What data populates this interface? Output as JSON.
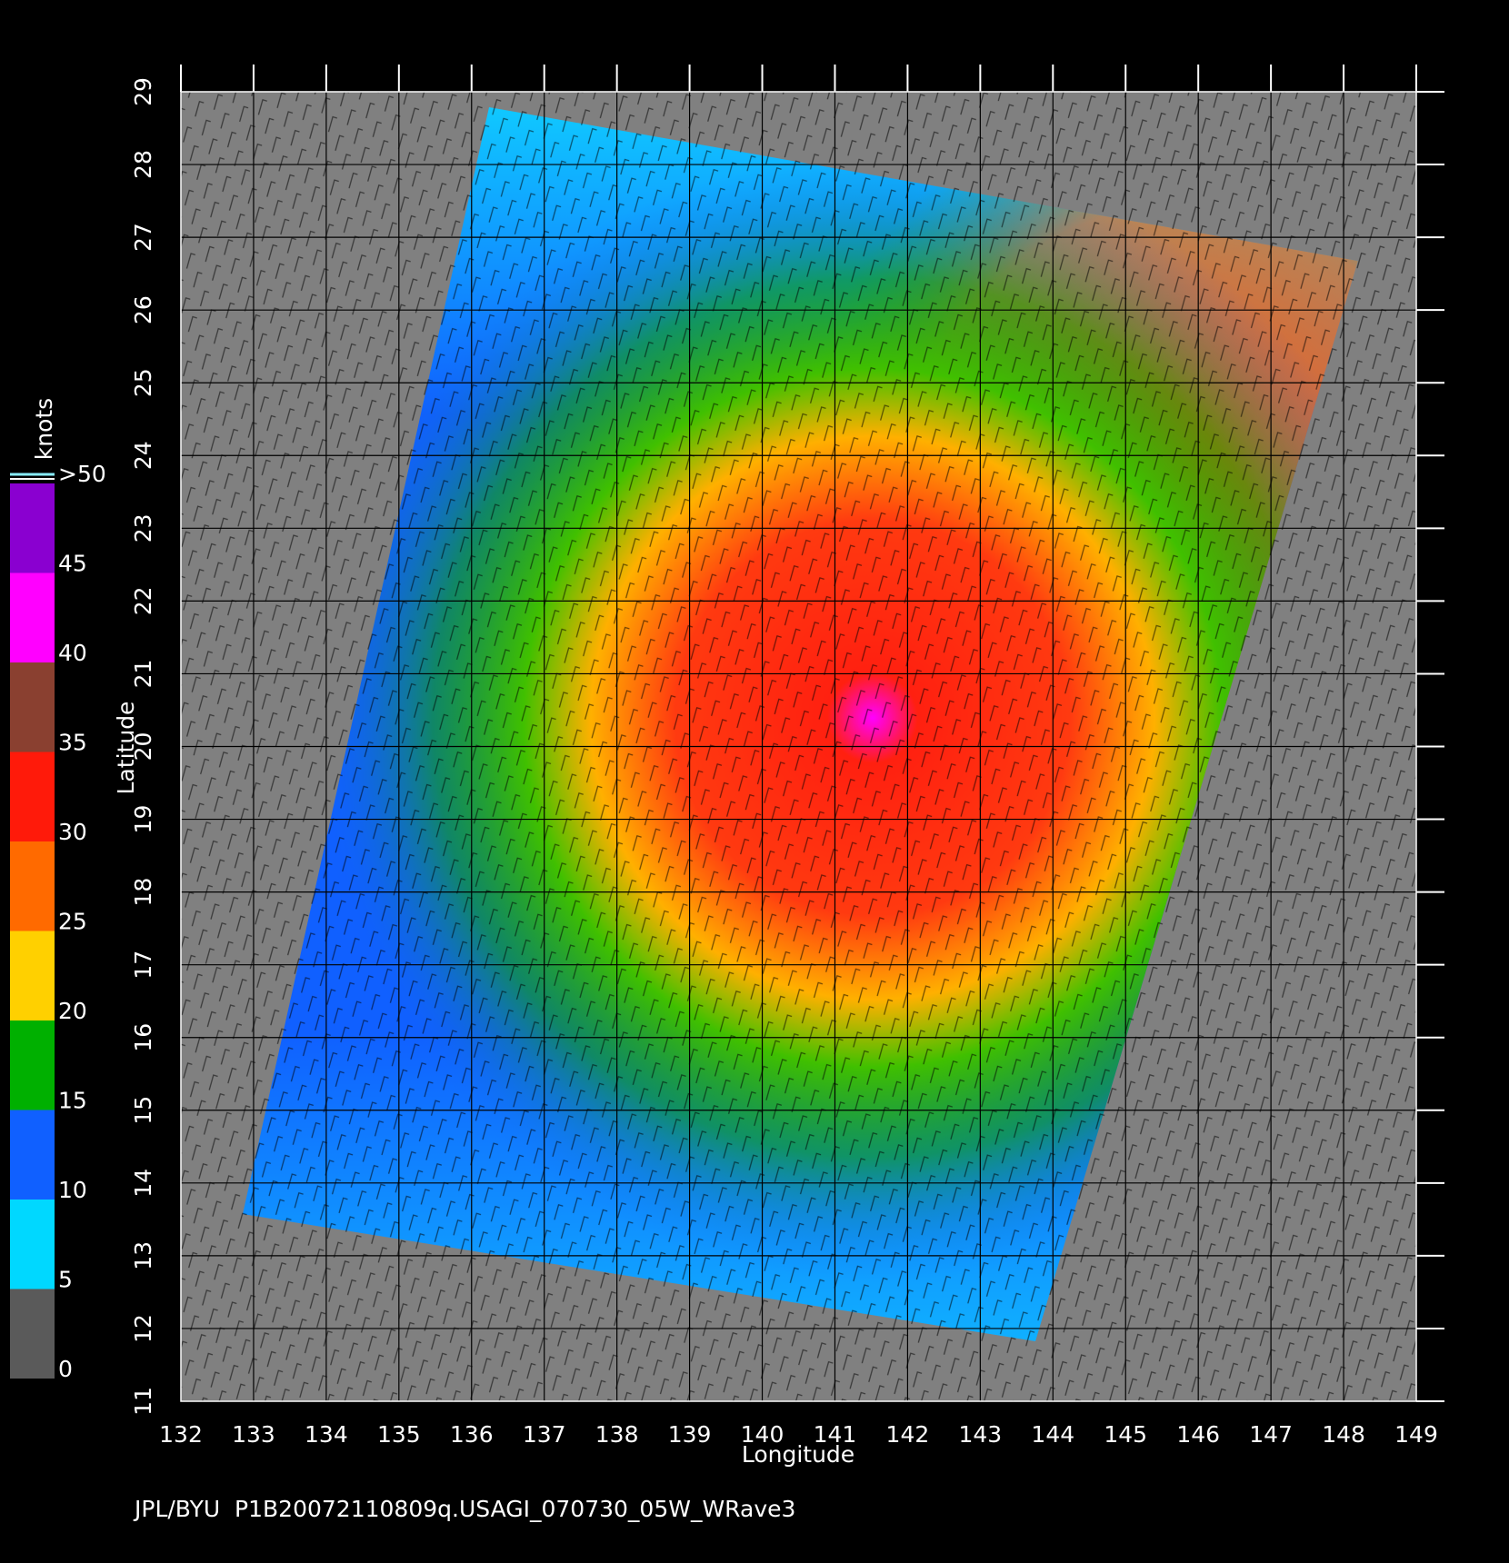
{
  "chart_data": {
    "type": "wind-map",
    "footer": "JPL/BYU  P1B20072110809q.USAGI_070730_05W_WRave3",
    "x_label": "Longitude",
    "y_label": "Latitude",
    "xlim": [
      132,
      149
    ],
    "xticks": [
      132,
      133,
      134,
      135,
      136,
      137,
      138,
      139,
      140,
      141,
      142,
      143,
      144,
      145,
      146,
      147,
      148,
      149
    ],
    "ylim": [
      11,
      29
    ],
    "yticks": [
      11,
      12,
      13,
      14,
      15,
      16,
      17,
      18,
      19,
      20,
      21,
      22,
      23,
      24,
      25,
      26,
      27,
      28,
      29
    ],
    "grid": true,
    "colorbar": {
      "label": "knots",
      "lim": [
        0,
        50
      ],
      "ticks": [
        0,
        5,
        10,
        15,
        20,
        25,
        30,
        35,
        40,
        45,
        {
          "value": 50,
          "label": ">50"
        }
      ],
      "colors": [
        "#5a5a5a",
        "#00d8ff",
        "#1060ff",
        "#00b000",
        "#ffd000",
        "#ff6a00",
        "#ff1a0a",
        "#8a4030",
        "#ff00ff",
        "#8a00d0"
      ]
    }
  }
}
